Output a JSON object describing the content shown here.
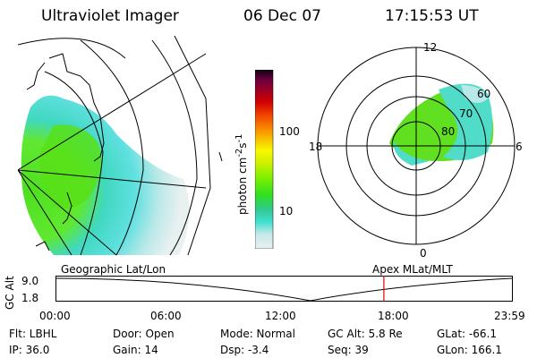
{
  "header": {
    "title": "Ultraviolet Imager",
    "date": "06 Dec 07",
    "time": "17:15:53 UT"
  },
  "colorbar": {
    "label_html": "photon cm",
    "ticks": [
      "100",
      "10"
    ],
    "colors": [
      "#e8f0f0",
      "#c8e8e8",
      "#40e0d0",
      "#30c890",
      "#30e020",
      "#80f000",
      "#d0f000",
      "#f8f800",
      "#f8b800",
      "#f88000",
      "#f04000",
      "#d00000",
      "#a00020",
      "#700040",
      "#400040",
      "#100010"
    ]
  },
  "polar": {
    "top_label": "12",
    "bottom_label": "0",
    "left_label": "18",
    "right_label": "6",
    "ring_labels": [
      "60",
      "70",
      "80"
    ]
  },
  "panel_labels": {
    "left": "Geographic Lat/Lon",
    "right": "Apex  MLat/MLT"
  },
  "altitude_plot": {
    "ylabel": "GC Alt",
    "yticks": [
      "9.0",
      "1.8"
    ],
    "xticks": [
      "00:00",
      "06:00",
      "12:00",
      "18:00",
      "23:59"
    ],
    "marker_time": "17:15:53",
    "marker_color": "#e00000"
  },
  "info": {
    "flt": "Flt: LBHL",
    "ip": "IP: 36.0",
    "door": "Door: Open",
    "gain": "Gain: 14",
    "mode": "Mode: Normal",
    "dsp": "Dsp:    -3.4",
    "gcalt": "GC Alt: 5.8 Re",
    "seq": "Seq: 39",
    "glat": "GLat:  -66.1",
    "glon": "GLon: 166.1"
  }
}
